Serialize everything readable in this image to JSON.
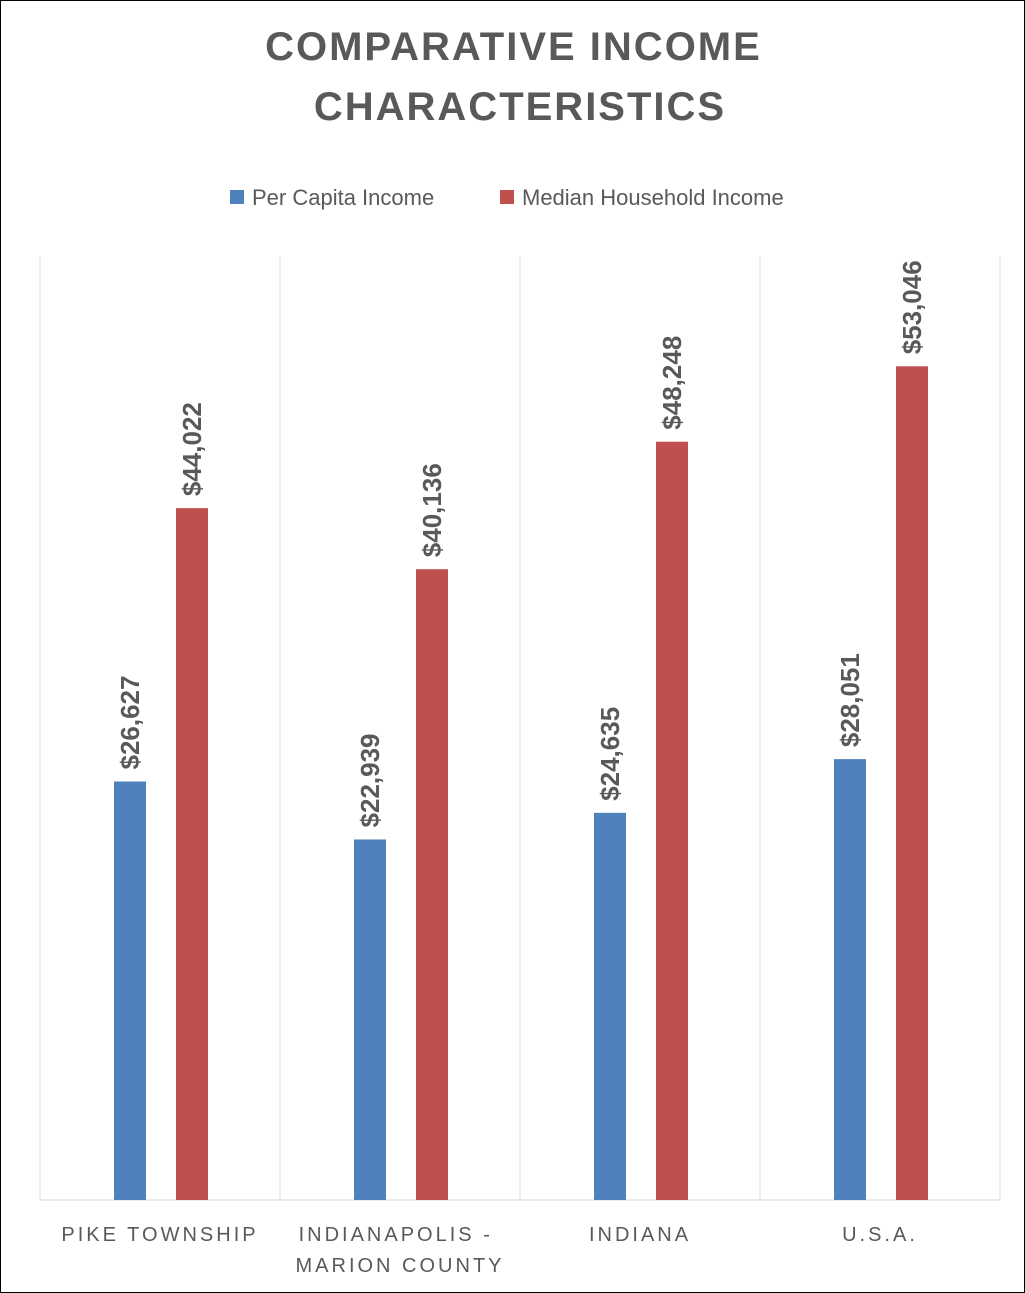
{
  "chart_data": {
    "type": "bar",
    "title": "COMPARATIVE INCOME CHARACTERISTICS",
    "categories": [
      "PIKE TOWNSHIP",
      "INDIANAPOLIS - MARION COUNTY",
      "INDIANA",
      "U.S.A."
    ],
    "series": [
      {
        "name": "Per Capita Income",
        "color": "#4f81bd",
        "values": [
          26627,
          22939,
          24635,
          28051
        ],
        "value_labels": [
          "$26,627",
          "$22,939",
          "$24,635",
          "$28,051"
        ]
      },
      {
        "name": "Median Household Income",
        "color": "#c0504d",
        "values": [
          44022,
          40136,
          48248,
          53046
        ],
        "value_labels": [
          "$44,022",
          "$40,136",
          "$48,248",
          "$53,046"
        ]
      }
    ],
    "ylim": [
      0,
      60000
    ],
    "legend": "top"
  }
}
